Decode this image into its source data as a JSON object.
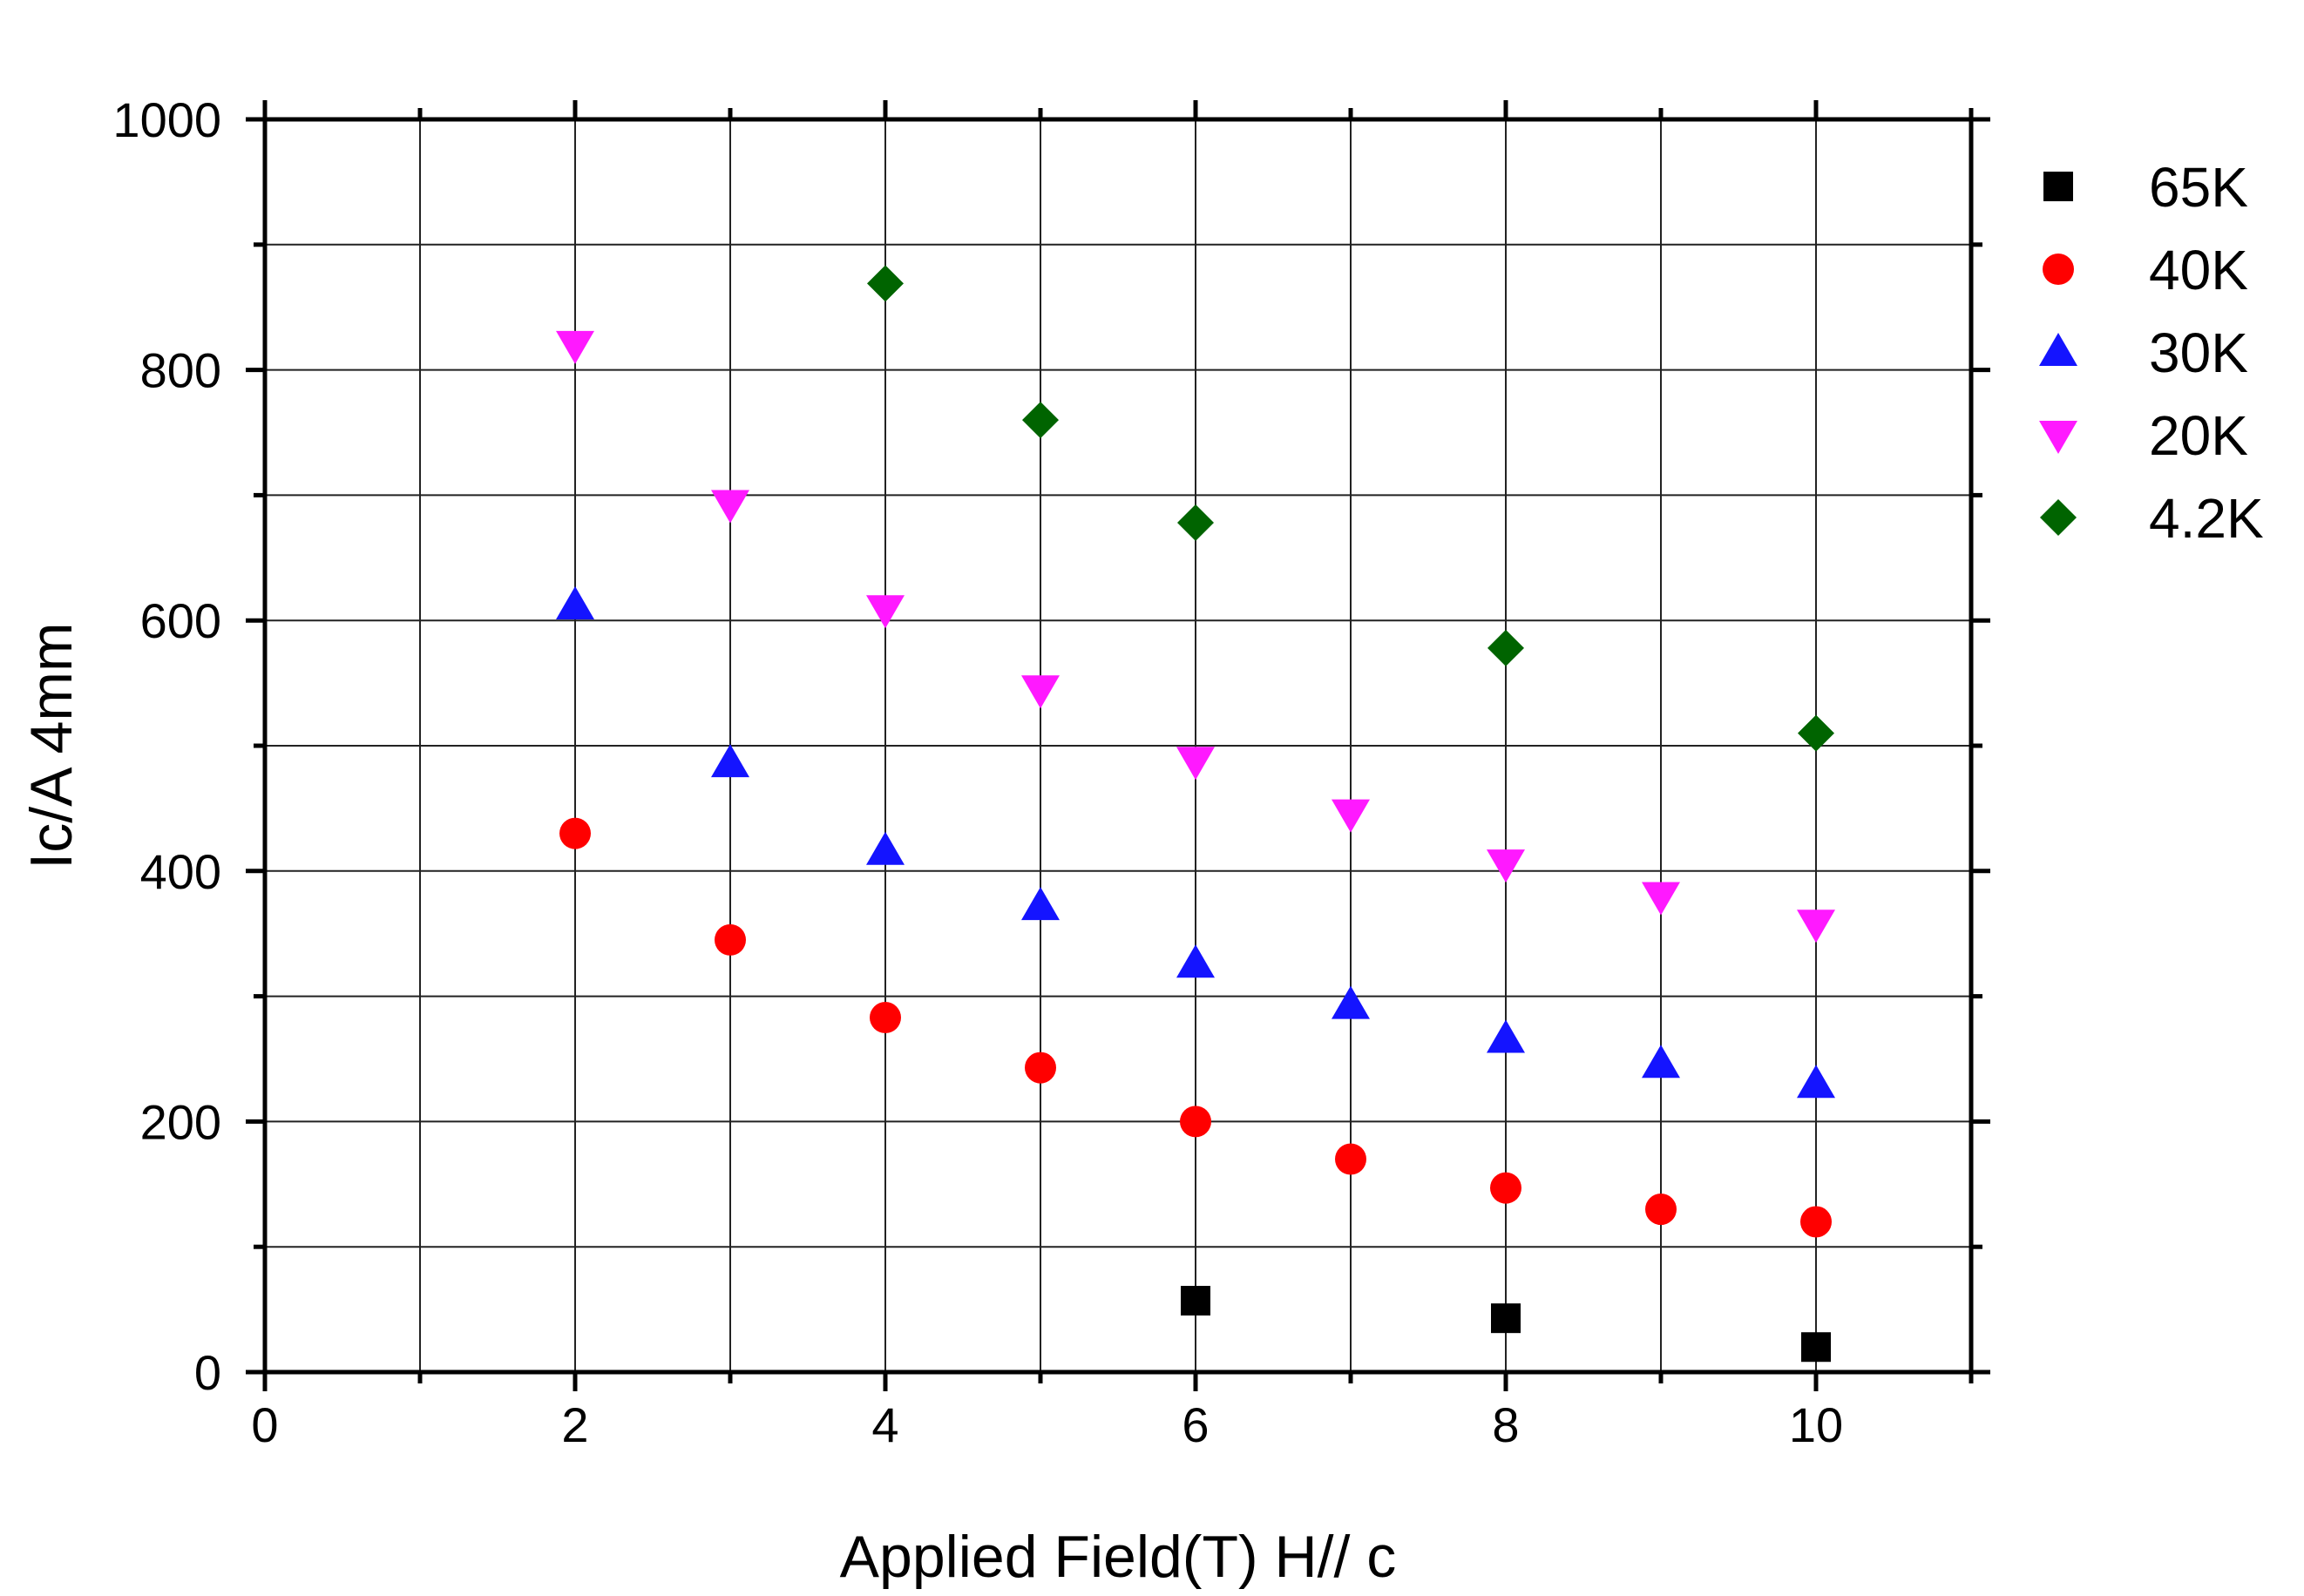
{
  "chart_data": {
    "type": "scatter",
    "title": "",
    "xlabel": "Applied Field(T) H// c",
    "ylabel": "Ic/A 4mm",
    "xlim": [
      0,
      11
    ],
    "ylim": [
      0,
      1000
    ],
    "x_ticks": [
      0,
      2,
      4,
      6,
      8,
      10
    ],
    "x_tick_labels": [
      "0",
      "2",
      "4",
      "6",
      "8",
      "10"
    ],
    "y_ticks": [
      0,
      200,
      400,
      600,
      800,
      1000
    ],
    "y_tick_labels": [
      "0",
      "200",
      "400",
      "600",
      "800",
      "1000"
    ],
    "grid": true,
    "legend_position": "right",
    "series": [
      {
        "name": "65K",
        "marker": "square",
        "color": "#000000",
        "x": [
          6,
          8,
          10
        ],
        "y": [
          57,
          43,
          20
        ]
      },
      {
        "name": "40K",
        "marker": "circle",
        "color": "#ff0000",
        "x": [
          2,
          3,
          4,
          5,
          6,
          7,
          8,
          9,
          10
        ],
        "y": [
          430,
          345,
          283,
          243,
          200,
          170,
          147,
          130,
          120
        ]
      },
      {
        "name": "30K",
        "marker": "triangle-up",
        "color": "#1414ff",
        "x": [
          2,
          3,
          4,
          5,
          6,
          7,
          8,
          9,
          10
        ],
        "y": [
          612,
          486,
          416,
          372,
          326,
          293,
          266,
          246,
          230
        ]
      },
      {
        "name": "20K",
        "marker": "triangle-down",
        "color": "#ff19ff",
        "x": [
          2,
          3,
          4,
          5,
          6,
          7,
          8,
          9,
          10
        ],
        "y": [
          820,
          693,
          609,
          545,
          488,
          446,
          406,
          380,
          358
        ]
      },
      {
        "name": "4.2K",
        "marker": "diamond",
        "color": "#006400",
        "x": [
          4,
          5,
          6,
          8,
          10
        ],
        "y": [
          869,
          760,
          678,
          578,
          510
        ]
      }
    ]
  }
}
